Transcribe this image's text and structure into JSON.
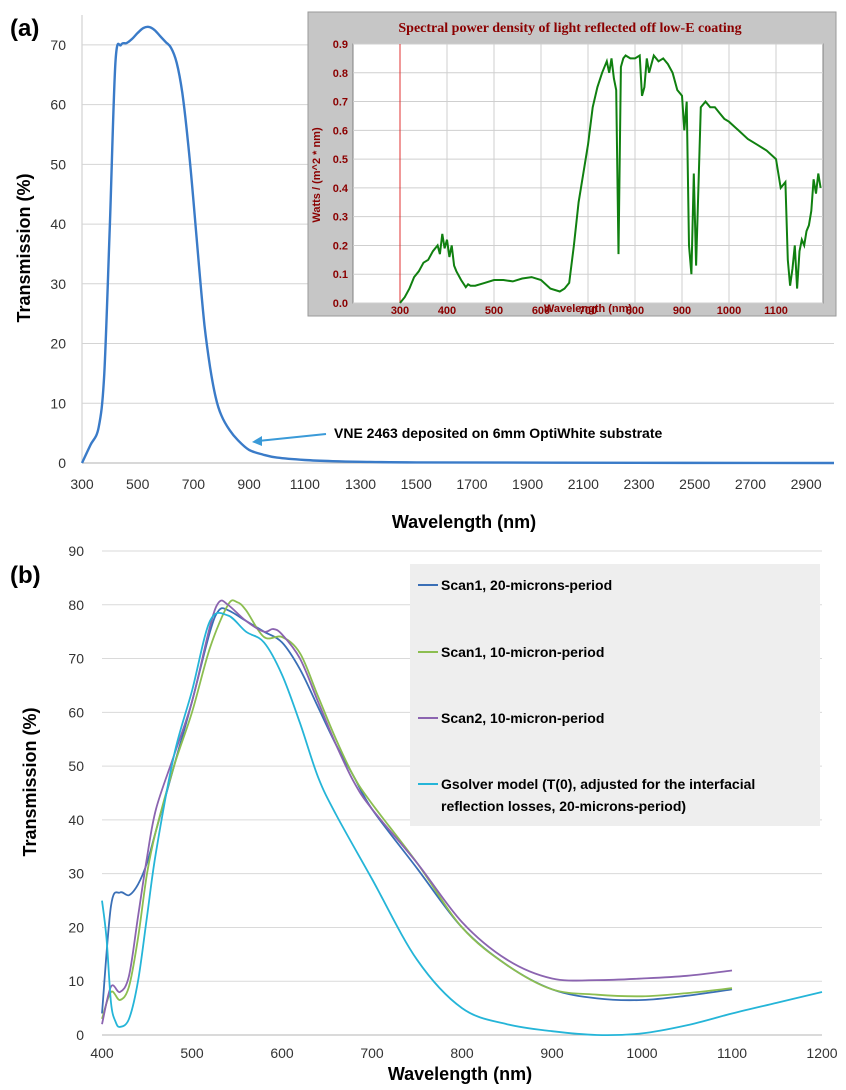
{
  "chart_data": [
    {
      "panel": "(a)",
      "type": "line",
      "xlabel": "Wavelength (nm)",
      "ylabel": "Transmission (%)",
      "xlim": [
        300,
        3000
      ],
      "ylim": [
        0,
        75
      ],
      "xticks": [
        300,
        500,
        700,
        900,
        1100,
        1300,
        1500,
        1700,
        1900,
        2100,
        2300,
        2500,
        2700,
        2900
      ],
      "yticks": [
        0,
        10,
        20,
        30,
        40,
        50,
        60,
        70
      ],
      "grid": true,
      "color": "#3a7bc8",
      "annotation": {
        "text": "VNE 2463 deposited on 6mm OptiWhite substrate",
        "points_to": [
          900,
          2
        ]
      },
      "series": [
        {
          "x": [
            300,
            330,
            360,
            380,
            400,
            420,
            440,
            460,
            480,
            500,
            520,
            540,
            560,
            580,
            600,
            620,
            640,
            660,
            680,
            700,
            720,
            740,
            760,
            780,
            800,
            830,
            860,
            900,
            950,
            1000,
            1100,
            1200,
            1300,
            1500,
            2000,
            3000
          ],
          "y": [
            0,
            3,
            6,
            15,
            40,
            67,
            70,
            70.3,
            71,
            72,
            72.8,
            73,
            72.5,
            71.5,
            70.5,
            69.5,
            67,
            62,
            54,
            44,
            33,
            23,
            16,
            11,
            8,
            5.5,
            3.8,
            2.2,
            1.4,
            0.9,
            0.5,
            0.3,
            0.2,
            0.1,
            0.05,
            0
          ]
        }
      ]
    },
    {
      "panel": "inset",
      "type": "line",
      "title": "Spectral power density of light reflected off low-E coating",
      "xlabel": "Wavelength (nm)",
      "ylabel": "Watts / (m^2 * nm)",
      "xlim": [
        200,
        1200
      ],
      "ylim": [
        0,
        0.9
      ],
      "xticks": [
        300,
        400,
        500,
        600,
        700,
        800,
        900,
        1000,
        1100
      ],
      "yticks": [
        0.0,
        0.1,
        0.2,
        0.3,
        0.4,
        0.5,
        0.6,
        0.7,
        0.8,
        0.9
      ],
      "ytick_labels": [
        "0.0",
        "0.1",
        "0.2",
        "0.3",
        "0.4",
        "0.5",
        "0.6",
        "0.7",
        "0.8",
        "0.9"
      ],
      "grid": true,
      "vline_x": 300,
      "color": "#108010",
      "series": [
        {
          "x": [
            300,
            310,
            320,
            330,
            340,
            350,
            360,
            370,
            380,
            385,
            390,
            395,
            400,
            405,
            410,
            415,
            420,
            430,
            440,
            445,
            450,
            460,
            480,
            500,
            520,
            540,
            560,
            580,
            600,
            620,
            640,
            650,
            660,
            670,
            680,
            690,
            700,
            710,
            720,
            730,
            740,
            745,
            750,
            755,
            760,
            765,
            770,
            775,
            780,
            790,
            800,
            810,
            815,
            820,
            825,
            830,
            840,
            850,
            860,
            870,
            880,
            890,
            900,
            905,
            910,
            915,
            920,
            925,
            930,
            940,
            950,
            960,
            970,
            980,
            990,
            1000,
            1020,
            1040,
            1060,
            1080,
            1100,
            1110,
            1120,
            1125,
            1130,
            1135,
            1140,
            1145,
            1150,
            1155,
            1160,
            1165,
            1170,
            1175,
            1180,
            1185,
            1190,
            1195
          ],
          "y": [
            0,
            0.02,
            0.05,
            0.09,
            0.11,
            0.14,
            0.15,
            0.18,
            0.2,
            0.17,
            0.24,
            0.19,
            0.22,
            0.16,
            0.2,
            0.13,
            0.11,
            0.08,
            0.055,
            0.065,
            0.06,
            0.06,
            0.07,
            0.08,
            0.08,
            0.075,
            0.085,
            0.09,
            0.08,
            0.05,
            0.04,
            0.05,
            0.07,
            0.2,
            0.35,
            0.45,
            0.55,
            0.68,
            0.75,
            0.8,
            0.84,
            0.8,
            0.85,
            0.78,
            0.74,
            0.17,
            0.82,
            0.85,
            0.86,
            0.85,
            0.85,
            0.86,
            0.72,
            0.75,
            0.85,
            0.8,
            0.86,
            0.84,
            0.85,
            0.83,
            0.8,
            0.74,
            0.72,
            0.6,
            0.7,
            0.2,
            0.1,
            0.45,
            0.13,
            0.68,
            0.7,
            0.68,
            0.68,
            0.66,
            0.64,
            0.63,
            0.6,
            0.57,
            0.55,
            0.53,
            0.5,
            0.4,
            0.42,
            0.15,
            0.06,
            0.12,
            0.2,
            0.05,
            0.18,
            0.22,
            0.2,
            0.25,
            0.27,
            0.32,
            0.43,
            0.38,
            0.45,
            0.4
          ]
        }
      ]
    },
    {
      "panel": "(b)",
      "type": "line",
      "xlabel": "Wavelength (nm)",
      "ylabel": "Transmission (%)",
      "xlim": [
        400,
        1200
      ],
      "ylim": [
        0,
        90
      ],
      "xticks": [
        400,
        500,
        600,
        700,
        800,
        900,
        1000,
        1100,
        1200
      ],
      "yticks": [
        0,
        10,
        20,
        30,
        40,
        50,
        60,
        70,
        80,
        90
      ],
      "grid": true,
      "legend": "top-right",
      "series": [
        {
          "name": "Scan1, 20-microns-period",
          "color": "#3a6fb6",
          "x": [
            400,
            410,
            420,
            430,
            440,
            450,
            460,
            480,
            500,
            520,
            530,
            540,
            560,
            580,
            600,
            620,
            640,
            660,
            680,
            700,
            750,
            800,
            850,
            900,
            950,
            1000,
            1050,
            1100
          ],
          "y": [
            4,
            24,
            26.5,
            26,
            28,
            32,
            38,
            50,
            62,
            75,
            79,
            79,
            77,
            75,
            73,
            68,
            61,
            54,
            48,
            42,
            31,
            20,
            13,
            8.5,
            6.8,
            6.5,
            7.3,
            8.5
          ]
        },
        {
          "name": "Scan1, 10-micron-period",
          "color": "#8cbe50",
          "x": [
            400,
            410,
            420,
            430,
            440,
            450,
            460,
            480,
            500,
            520,
            540,
            550,
            560,
            580,
            600,
            620,
            640,
            660,
            680,
            700,
            750,
            800,
            850,
            900,
            950,
            1000,
            1050,
            1100
          ],
          "y": [
            3,
            8,
            6.5,
            9,
            18,
            30,
            38,
            50,
            60,
            72,
            80,
            80.5,
            79,
            74,
            74,
            71,
            63,
            55,
            48,
            43,
            32,
            20,
            13,
            8.5,
            7.5,
            7.2,
            7.8,
            8.7
          ]
        },
        {
          "name": "Scan2, 10-micron-period",
          "color": "#8b64b0",
          "x": [
            400,
            410,
            420,
            430,
            440,
            450,
            460,
            480,
            500,
            520,
            530,
            540,
            560,
            580,
            590,
            600,
            620,
            640,
            660,
            680,
            700,
            750,
            800,
            850,
            900,
            950,
            1000,
            1050,
            1100
          ],
          "y": [
            2,
            9,
            8,
            11,
            22,
            33,
            42,
            52,
            62,
            76,
            80.5,
            80,
            77,
            75,
            75.5,
            74.5,
            70,
            62,
            54,
            47,
            42,
            32,
            21,
            14,
            10.5,
            10.2,
            10.5,
            11,
            12
          ]
        },
        {
          "name": "Gsolver model (T(0), adjusted for the interfacial reflection losses, 20-microns-period)",
          "color": "#25b5d8",
          "x": [
            400,
            405,
            410,
            415,
            420,
            430,
            440,
            450,
            460,
            480,
            500,
            520,
            540,
            560,
            580,
            600,
            620,
            640,
            660,
            700,
            750,
            800,
            850,
            900,
            950,
            1000,
            1050,
            1100,
            1150,
            1200
          ],
          "y": [
            25,
            18,
            6,
            2.5,
            1.5,
            3,
            10,
            22,
            34,
            52,
            64,
            77,
            78,
            75,
            73,
            67,
            58,
            48,
            41,
            29,
            14,
            5,
            2,
            0.7,
            0,
            0.3,
            1.8,
            4,
            6,
            8
          ]
        }
      ]
    }
  ],
  "annotation_text": "VNE 2463 deposited on 6mm OptiWhite substrate",
  "panel_a_label": "(a)",
  "panel_b_label": "(b)"
}
